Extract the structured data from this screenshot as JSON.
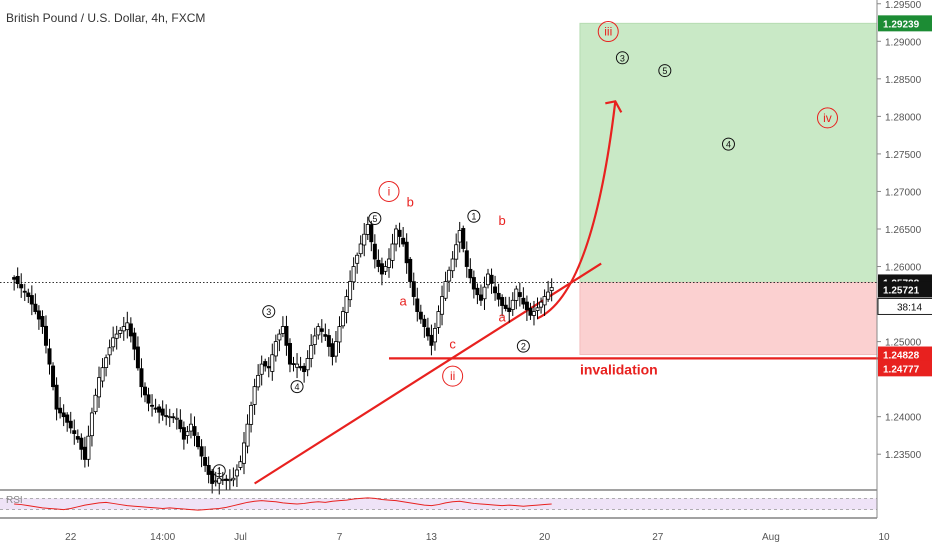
{
  "header": {
    "symbol_title": "British Pound / U.S. Dollar, 4h, FXCM"
  },
  "colors": {
    "bull": "#000000",
    "bear": "#000000",
    "profit_zone": "#c9e9c6",
    "loss_zone": "#fbd0d0",
    "annotation_red": "#e8211f",
    "wave_circle_dark": "#111111",
    "target_tag": "#1c8c34",
    "invalidation_tag": "#e8211f",
    "rsi_line": "#e8211f",
    "rsi_band": "#efe3f7"
  },
  "chart_data": {
    "type": "candlestick",
    "title": "British Pound / U.S. Dollar, 4h, FXCM",
    "xlabel": "",
    "ylabel": "",
    "ylim": [
      1.2305,
      1.2955
    ],
    "y_ticks": [
      "1.29500",
      "1.29000",
      "1.28500",
      "1.28000",
      "1.27500",
      "1.27000",
      "1.26500",
      "1.26000",
      "1.25000",
      "1.24000",
      "1.23500"
    ],
    "x_ticks": [
      {
        "label": "22",
        "t": 8
      },
      {
        "label": "14:00",
        "t": 21
      },
      {
        "label": "Jul",
        "t": 32
      },
      {
        "label": "7",
        "t": 46
      },
      {
        "label": "13",
        "t": 59
      },
      {
        "label": "20",
        "t": 75
      },
      {
        "label": "27",
        "t": 91
      },
      {
        "label": "Aug",
        "t": 107
      },
      {
        "label": "10",
        "t": 123
      }
    ],
    "close_path": [
      [
        0,
        1.2583
      ],
      [
        2,
        1.256
      ],
      [
        4,
        1.252
      ],
      [
        5,
        1.247
      ],
      [
        6,
        1.241
      ],
      [
        7,
        1.24
      ],
      [
        9,
        1.237
      ],
      [
        10,
        1.2343
      ],
      [
        11,
        1.2405
      ],
      [
        12,
        1.2452
      ],
      [
        14,
        1.2505
      ],
      [
        16,
        1.2525
      ],
      [
        17,
        1.249
      ],
      [
        18,
        1.244
      ],
      [
        19,
        1.2418
      ],
      [
        21,
        1.2402
      ],
      [
        23,
        1.2398
      ],
      [
        24,
        1.237
      ],
      [
        25,
        1.239
      ],
      [
        26,
        1.236
      ],
      [
        27,
        1.2335
      ],
      [
        28,
        1.2311
      ],
      [
        29,
        1.2318
      ],
      [
        30,
        1.2315
      ],
      [
        31,
        1.2318
      ],
      [
        32,
        1.234
      ],
      [
        33,
        1.239
      ],
      [
        34,
        1.244
      ],
      [
        35,
        1.247
      ],
      [
        36,
        1.2465
      ],
      [
        37,
        1.25
      ],
      [
        38,
        1.252
      ],
      [
        39,
        1.247
      ],
      [
        40,
        1.247
      ],
      [
        41,
        1.246
      ],
      [
        42,
        1.2495
      ],
      [
        43,
        1.252
      ],
      [
        44,
        1.2507
      ],
      [
        45,
        1.248
      ],
      [
        46,
        1.252
      ],
      [
        47,
        1.256
      ],
      [
        48,
        1.26
      ],
      [
        49,
        1.263
      ],
      [
        50,
        1.2656
      ],
      [
        51,
        1.261
      ],
      [
        52,
        1.259
      ],
      [
        53,
        1.261
      ],
      [
        54,
        1.265
      ],
      [
        55,
        1.263
      ],
      [
        56,
        1.258
      ],
      [
        57,
        1.254
      ],
      [
        58,
        1.252
      ],
      [
        59,
        1.2495
      ],
      [
        60,
        1.254
      ],
      [
        61,
        1.258
      ],
      [
        62,
        1.261
      ],
      [
        63,
        1.2648
      ],
      [
        64,
        1.26
      ],
      [
        65,
        1.257
      ],
      [
        66,
        1.2555
      ],
      [
        67,
        1.259
      ],
      [
        68,
        1.2565
      ],
      [
        69,
        1.2548
      ],
      [
        70,
        1.254
      ],
      [
        71,
        1.257
      ],
      [
        72,
        1.255
      ],
      [
        73,
        1.2535
      ],
      [
        74,
        1.2545
      ],
      [
        75,
        1.256
      ],
      [
        76,
        1.2572
      ]
    ],
    "series": [
      {
        "name": "price_line",
        "value": "1.25788"
      },
      {
        "name": "current_price",
        "value": "1.25721",
        "countdown": "38:14"
      },
      {
        "name": "target",
        "value": "1.29239"
      },
      {
        "name": "stop",
        "value": "1.24828"
      },
      {
        "name": "invalidation_level",
        "value": "1.24777"
      }
    ],
    "position_box": {
      "t_start": 80,
      "t_end": 122,
      "entry": 1.25788,
      "target": 1.29239,
      "stop": 1.24828
    },
    "trendline": {
      "t1": 34,
      "p1": 1.2311,
      "t2": 83,
      "p2": 1.2604
    },
    "invalidation_line": {
      "t1": 53,
      "t2": 124,
      "price": 1.24777
    },
    "projection": {
      "t_from": 74,
      "p_from": 1.2531,
      "t_to": 85,
      "p_to": 1.282
    },
    "annotations": [
      {
        "label": "i",
        "style": "red-circle",
        "t": 53,
        "p": 1.27
      },
      {
        "label": "ii",
        "style": "red-circle",
        "t": 62,
        "p": 1.2454
      },
      {
        "label": "iii",
        "style": "red-circle",
        "t": 84,
        "p": 1.2913
      },
      {
        "label": "iv",
        "style": "red-circle",
        "t": 115,
        "p": 1.2798
      },
      {
        "label": "b",
        "style": "red-text",
        "t": 56,
        "p": 1.268
      },
      {
        "label": "a",
        "style": "red-text",
        "t": 55,
        "p": 1.2548
      },
      {
        "label": "b",
        "style": "red-text",
        "t": 69,
        "p": 1.2655
      },
      {
        "label": "a",
        "style": "red-text",
        "t": 69,
        "p": 1.2527
      },
      {
        "label": "c",
        "style": "red-text",
        "t": 62,
        "p": 1.2491
      },
      {
        "label": "1",
        "style": "dark-circle",
        "t": 29,
        "p": 1.2328
      },
      {
        "label": "3",
        "style": "dark-circle",
        "t": 36,
        "p": 1.254
      },
      {
        "label": "4",
        "style": "dark-circle",
        "t": 40,
        "p": 1.244
      },
      {
        "label": "5",
        "style": "dark-circle",
        "t": 51,
        "p": 1.2664
      },
      {
        "label": "1",
        "style": "dark-circle",
        "t": 65,
        "p": 1.2667
      },
      {
        "label": "2",
        "style": "dark-circle",
        "t": 72,
        "p": 1.2494
      },
      {
        "label": "3",
        "style": "dark-circle",
        "t": 86,
        "p": 1.2878
      },
      {
        "label": "5",
        "style": "dark-circle",
        "t": 92,
        "p": 1.2861
      },
      {
        "label": "4",
        "style": "dark-circle",
        "t": 101,
        "p": 1.2763
      }
    ],
    "invalidation_text": {
      "label": "invalidation",
      "t": 80,
      "p": 1.2456
    },
    "rsi": {
      "label": "RSI",
      "values": [
        50,
        48,
        44,
        40,
        36,
        34,
        32,
        30,
        34,
        40,
        46,
        50,
        54,
        56,
        52,
        48,
        44,
        42,
        40,
        38,
        36,
        34,
        36,
        34,
        32,
        30,
        28,
        30,
        32,
        34,
        38,
        44,
        50,
        56,
        60,
        62,
        60,
        58,
        54,
        52,
        50,
        52,
        56,
        58,
        56,
        60,
        62,
        64,
        68,
        70,
        72,
        70,
        66,
        64,
        62,
        58,
        54,
        50,
        46,
        44,
        48,
        54,
        58,
        60,
        56,
        52,
        50,
        48,
        46,
        44,
        46,
        44,
        42,
        44,
        46,
        48,
        50
      ],
      "band": [
        30,
        70
      ]
    }
  }
}
